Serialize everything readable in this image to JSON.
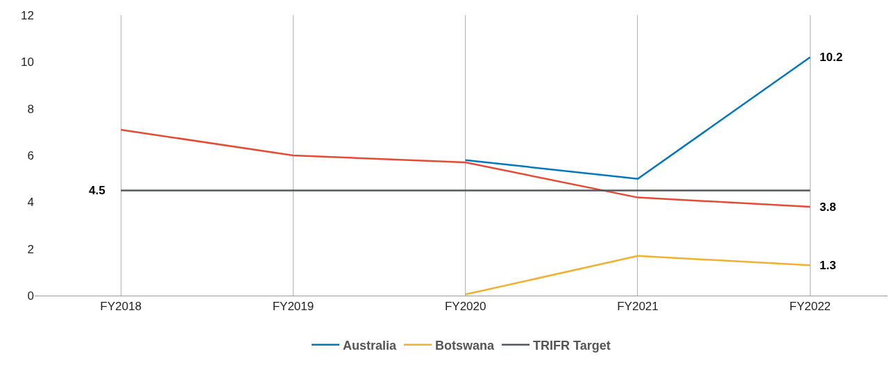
{
  "chart_data": {
    "type": "line",
    "categories": [
      "FY2018",
      "FY2019",
      "FY2020",
      "FY2021",
      "FY2022"
    ],
    "series": [
      {
        "name": "Australia",
        "color": "#0077bd",
        "values": [
          null,
          null,
          5.8,
          5.0,
          10.2
        ],
        "value_labels": [
          null,
          null,
          null,
          null,
          "10.2"
        ]
      },
      {
        "name": "Botswana",
        "color": "#f2b02e",
        "values": [
          null,
          null,
          0.05,
          1.7,
          1.3
        ],
        "value_labels": [
          null,
          null,
          null,
          null,
          "1.3"
        ]
      },
      {
        "color": "#e64a33",
        "values": [
          7.1,
          6.0,
          5.7,
          4.2,
          3.8
        ],
        "value_labels": [
          null,
          null,
          null,
          null,
          "3.8"
        ]
      },
      {
        "name": "TRIFR Target",
        "color": "#53565a",
        "values": [
          4.5,
          4.5,
          4.5,
          4.5,
          4.5
        ],
        "value_labels": [
          "4.5",
          null,
          null,
          null,
          null
        ]
      }
    ],
    "ylim": [
      0,
      12
    ],
    "yticks": [
      0,
      2,
      4,
      6,
      8,
      10,
      12
    ],
    "grid": "x",
    "legend": "bottom",
    "marker": "none",
    "line_style": "solid"
  }
}
